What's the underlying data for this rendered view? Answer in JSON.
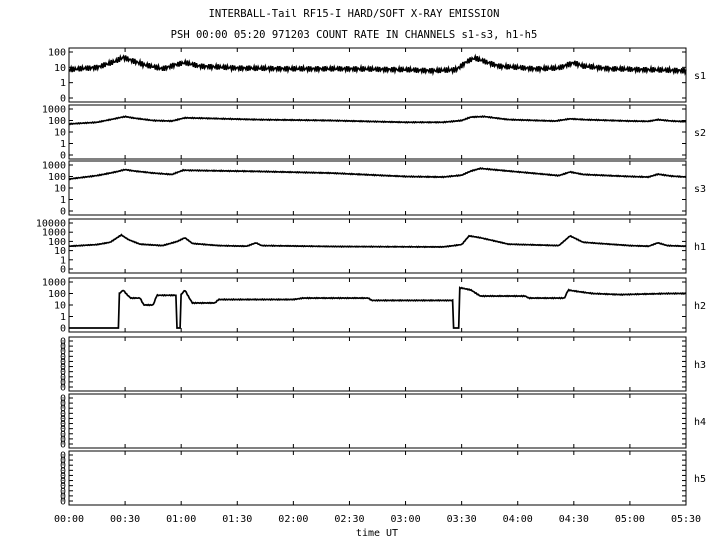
{
  "header": {
    "title": "INTERBALL-Tail RF15-I HARD/SOFT X-RAY EMISSION",
    "subtitle": "PSH 00:00 05:20 971203  COUNT RATE IN CHANNELS s1-s3, h1-h5"
  },
  "chart_data": {
    "type": "line",
    "xlabel": "time UT",
    "x_unit": "minutes UT",
    "xlim": [
      0,
      330
    ],
    "x_ticks": [
      {
        "value": 0,
        "label": "00:00"
      },
      {
        "value": 30,
        "label": "00:30"
      },
      {
        "value": 60,
        "label": "01:00"
      },
      {
        "value": 90,
        "label": "01:30"
      },
      {
        "value": 120,
        "label": "02:00"
      },
      {
        "value": 150,
        "label": "02:30"
      },
      {
        "value": 180,
        "label": "03:00"
      },
      {
        "value": 210,
        "label": "03:30"
      },
      {
        "value": 240,
        "label": "04:00"
      },
      {
        "value": 270,
        "label": "04:30"
      },
      {
        "value": 300,
        "label": "05:00"
      },
      {
        "value": 330,
        "label": "05:30"
      }
    ],
    "y_scale": "log",
    "panels": [
      {
        "name": "s1",
        "y_ticks": [
          "100",
          "10",
          "1",
          "0"
        ],
        "style": "noisy",
        "points": [
          [
            0,
            7
          ],
          [
            15,
            10
          ],
          [
            25,
            25
          ],
          [
            29,
            45
          ],
          [
            33,
            30
          ],
          [
            40,
            15
          ],
          [
            50,
            8
          ],
          [
            57,
            15
          ],
          [
            62,
            20
          ],
          [
            70,
            12
          ],
          [
            90,
            9
          ],
          [
            120,
            8
          ],
          [
            150,
            8
          ],
          [
            180,
            7
          ],
          [
            195,
            6
          ],
          [
            207,
            7
          ],
          [
            213,
            25
          ],
          [
            217,
            40
          ],
          [
            222,
            25
          ],
          [
            230,
            12
          ],
          [
            250,
            8
          ],
          [
            262,
            9
          ],
          [
            266,
            14
          ],
          [
            270,
            20
          ],
          [
            275,
            12
          ],
          [
            290,
            8
          ],
          [
            310,
            7
          ],
          [
            330,
            6
          ]
        ]
      },
      {
        "name": "s2",
        "y_ticks": [
          "1000",
          "100",
          "10",
          "1",
          "0"
        ],
        "style": "solid",
        "points": [
          [
            0,
            50
          ],
          [
            15,
            70
          ],
          [
            25,
            150
          ],
          [
            30,
            220
          ],
          [
            35,
            160
          ],
          [
            45,
            100
          ],
          [
            55,
            90
          ],
          [
            62,
            170
          ],
          [
            70,
            160
          ],
          [
            100,
            120
          ],
          [
            140,
            100
          ],
          [
            180,
            70
          ],
          [
            200,
            70
          ],
          [
            210,
            100
          ],
          [
            215,
            200
          ],
          [
            222,
            220
          ],
          [
            235,
            120
          ],
          [
            260,
            90
          ],
          [
            268,
            140
          ],
          [
            275,
            120
          ],
          [
            300,
            90
          ],
          [
            310,
            85
          ],
          [
            315,
            120
          ],
          [
            322,
            90
          ],
          [
            330,
            80
          ]
        ]
      },
      {
        "name": "s3",
        "y_ticks": [
          "1000",
          "100",
          "10",
          "1",
          "0"
        ],
        "style": "solid",
        "points": [
          [
            0,
            60
          ],
          [
            15,
            120
          ],
          [
            25,
            250
          ],
          [
            30,
            400
          ],
          [
            35,
            300
          ],
          [
            45,
            200
          ],
          [
            55,
            150
          ],
          [
            61,
            350
          ],
          [
            70,
            330
          ],
          [
            100,
            280
          ],
          [
            140,
            200
          ],
          [
            180,
            100
          ],
          [
            200,
            90
          ],
          [
            210,
            130
          ],
          [
            215,
            300
          ],
          [
            220,
            500
          ],
          [
            235,
            300
          ],
          [
            262,
            120
          ],
          [
            268,
            250
          ],
          [
            275,
            150
          ],
          [
            300,
            100
          ],
          [
            310,
            90
          ],
          [
            315,
            160
          ],
          [
            322,
            110
          ],
          [
            330,
            90
          ]
        ]
      },
      {
        "name": "h1",
        "y_ticks": [
          "10000",
          "1000",
          "100",
          "10",
          "1",
          "0"
        ],
        "style": "solid",
        "points": [
          [
            0,
            30
          ],
          [
            15,
            45
          ],
          [
            22,
            80
          ],
          [
            28,
            500
          ],
          [
            32,
            150
          ],
          [
            38,
            50
          ],
          [
            50,
            35
          ],
          [
            58,
            100
          ],
          [
            62,
            250
          ],
          [
            66,
            60
          ],
          [
            80,
            35
          ],
          [
            95,
            30
          ],
          [
            100,
            70
          ],
          [
            103,
            35
          ],
          [
            140,
            28
          ],
          [
            200,
            25
          ],
          [
            210,
            45
          ],
          [
            214,
            400
          ],
          [
            220,
            250
          ],
          [
            227,
            120
          ],
          [
            235,
            50
          ],
          [
            262,
            35
          ],
          [
            268,
            400
          ],
          [
            275,
            80
          ],
          [
            300,
            35
          ],
          [
            310,
            30
          ],
          [
            315,
            70
          ],
          [
            320,
            35
          ],
          [
            330,
            30
          ]
        ]
      },
      {
        "name": "h2",
        "y_ticks": [
          "1000",
          "100",
          "10",
          "1",
          "0"
        ],
        "style": "solid",
        "points": [
          [
            0,
            0
          ],
          [
            26,
            0
          ],
          [
            27,
            100
          ],
          [
            29,
            200
          ],
          [
            31,
            80
          ],
          [
            33,
            40
          ],
          [
            38,
            40
          ],
          [
            40,
            10
          ],
          [
            45,
            10
          ],
          [
            47,
            70
          ],
          [
            57,
            70
          ],
          [
            58,
            0
          ],
          [
            59,
            0
          ],
          [
            60,
            80
          ],
          [
            62,
            200
          ],
          [
            64,
            50
          ],
          [
            66,
            15
          ],
          [
            78,
            15
          ],
          [
            80,
            30
          ],
          [
            120,
            30
          ],
          [
            125,
            40
          ],
          [
            160,
            40
          ],
          [
            162,
            25
          ],
          [
            205,
            25
          ],
          [
            206,
            0
          ],
          [
            208,
            0
          ],
          [
            210,
            300
          ],
          [
            215,
            200
          ],
          [
            220,
            60
          ],
          [
            244,
            60
          ],
          [
            246,
            40
          ],
          [
            265,
            40
          ],
          [
            267,
            200
          ],
          [
            272,
            150
          ],
          [
            280,
            100
          ],
          [
            295,
            80
          ],
          [
            320,
            100
          ],
          [
            330,
            100
          ]
        ]
      },
      {
        "name": "h3",
        "y_ticks": [
          "0",
          "0",
          "0",
          "0",
          "0",
          "0",
          "0",
          "0",
          "0",
          "0"
        ],
        "style": "empty",
        "points": []
      },
      {
        "name": "h4",
        "y_ticks": [
          "0",
          "0",
          "0",
          "0",
          "0",
          "0",
          "0",
          "0",
          "0",
          "0"
        ],
        "style": "empty",
        "points": []
      },
      {
        "name": "h5",
        "y_ticks": [
          "0",
          "0",
          "0",
          "0",
          "0",
          "0",
          "0",
          "0",
          "0",
          "0"
        ],
        "style": "empty",
        "points": []
      }
    ],
    "grid": false,
    "legend": "none"
  }
}
